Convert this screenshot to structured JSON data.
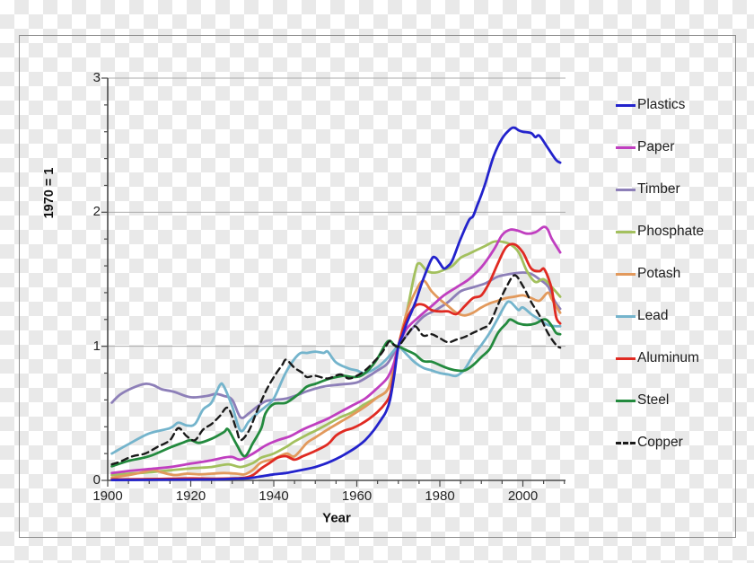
{
  "chart_data": {
    "type": "line",
    "title": "",
    "xlabel": "Year",
    "ylabel": "1970 = 1",
    "xlim": [
      1900,
      2010
    ],
    "ylim": [
      0,
      3
    ],
    "grid": "horizontal-only",
    "gridlines_y": [
      1,
      2,
      3
    ],
    "x_major_ticks": [
      1900,
      1920,
      1940,
      1960,
      1980,
      2000
    ],
    "x_minor_step": 5,
    "y_major_ticks": [
      0,
      1,
      2,
      3
    ],
    "y_minor_step": 0.2,
    "legend_position": "right-outside",
    "draw_order": [
      2,
      3,
      4,
      1,
      5,
      7,
      6,
      0,
      8
    ],
    "series": [
      {
        "name": "Plastics",
        "color": "#2323cc",
        "dash": null,
        "x": [
          1901,
          1910,
          1920,
          1927,
          1930,
          1933,
          1935,
          1937,
          1940,
          1943,
          1945,
          1948,
          1950,
          1952,
          1954,
          1956,
          1958,
          1960,
          1962,
          1964,
          1966,
          1967,
          1968,
          1969,
          1970,
          1971,
          1972,
          1974,
          1976,
          1978,
          1979,
          1980,
          1981,
          1982,
          1983,
          1985,
          1987,
          1988,
          1989,
          1990,
          1991,
          1993,
          1995,
          1997,
          1998,
          1999,
          2000,
          2002,
          2003,
          2004,
          2006,
          2008,
          2009
        ],
        "y": [
          0.003,
          0.004,
          0.006,
          0.008,
          0.012,
          0.015,
          0.02,
          0.03,
          0.045,
          0.055,
          0.067,
          0.085,
          0.1,
          0.12,
          0.145,
          0.175,
          0.21,
          0.25,
          0.3,
          0.37,
          0.46,
          0.51,
          0.6,
          0.78,
          1.0,
          1.08,
          1.17,
          1.32,
          1.5,
          1.65,
          1.66,
          1.62,
          1.58,
          1.6,
          1.64,
          1.8,
          1.94,
          1.97,
          2.05,
          2.13,
          2.22,
          2.42,
          2.55,
          2.62,
          2.63,
          2.61,
          2.6,
          2.59,
          2.56,
          2.57,
          2.48,
          2.39,
          2.37
        ]
      },
      {
        "name": "Paper",
        "color": "#c03fc0",
        "dash": null,
        "x": [
          1901,
          1905,
          1910,
          1915,
          1920,
          1925,
          1928,
          1930,
          1932,
          1935,
          1938,
          1941,
          1944,
          1947,
          1950,
          1953,
          1956,
          1959,
          1962,
          1965,
          1967,
          1968,
          1969,
          1970,
          1972,
          1975,
          1978,
          1981,
          1984,
          1987,
          1990,
          1993,
          1995,
          1997,
          1999,
          2001,
          2003,
          2005,
          2006,
          2007,
          2009
        ],
        "y": [
          0.055,
          0.07,
          0.085,
          0.1,
          0.125,
          0.15,
          0.17,
          0.175,
          0.155,
          0.2,
          0.26,
          0.3,
          0.33,
          0.38,
          0.42,
          0.46,
          0.51,
          0.56,
          0.61,
          0.69,
          0.75,
          0.8,
          0.88,
          1.0,
          1.13,
          1.22,
          1.3,
          1.38,
          1.44,
          1.5,
          1.59,
          1.72,
          1.83,
          1.87,
          1.86,
          1.84,
          1.85,
          1.89,
          1.87,
          1.8,
          1.7
        ]
      },
      {
        "name": "Timber",
        "color": "#8d7fb8",
        "dash": null,
        "x": [
          1901,
          1903,
          1906,
          1909,
          1911,
          1913,
          1916,
          1920,
          1924,
          1926,
          1928,
          1930,
          1932,
          1934,
          1936,
          1938,
          1940,
          1943,
          1946,
          1948,
          1952,
          1956,
          1960,
          1963,
          1965,
          1967,
          1968,
          1970,
          1973,
          1976,
          1979,
          1982,
          1985,
          1988,
          1991,
          1994,
          1997,
          2000,
          2002,
          2004,
          2006,
          2007,
          2008,
          2009
        ],
        "y": [
          0.58,
          0.64,
          0.69,
          0.72,
          0.71,
          0.68,
          0.66,
          0.62,
          0.63,
          0.645,
          0.63,
          0.6,
          0.47,
          0.5,
          0.55,
          0.59,
          0.6,
          0.61,
          0.64,
          0.665,
          0.7,
          0.715,
          0.73,
          0.78,
          0.82,
          0.86,
          0.9,
          1.0,
          1.12,
          1.22,
          1.27,
          1.33,
          1.41,
          1.44,
          1.47,
          1.52,
          1.54,
          1.55,
          1.54,
          1.5,
          1.45,
          1.38,
          1.32,
          1.28
        ]
      },
      {
        "name": "Phosphate",
        "color": "#a3c05e",
        "dash": null,
        "x": [
          1901,
          1905,
          1910,
          1915,
          1920,
          1925,
          1929,
          1932,
          1935,
          1937,
          1940,
          1943,
          1945,
          1948,
          1950,
          1953,
          1956,
          1959,
          1962,
          1965,
          1967,
          1968,
          1969,
          1970,
          1972,
          1974,
          1975,
          1977,
          1979,
          1981,
          1983,
          1985,
          1987,
          1989,
          1991,
          1993,
          1995,
          1997,
          1999,
          2001,
          2003,
          2005,
          2007,
          2009
        ],
        "y": [
          0.04,
          0.05,
          0.06,
          0.075,
          0.09,
          0.1,
          0.12,
          0.1,
          0.13,
          0.17,
          0.2,
          0.25,
          0.29,
          0.34,
          0.37,
          0.42,
          0.47,
          0.51,
          0.57,
          0.62,
          0.66,
          0.72,
          0.83,
          1.0,
          1.25,
          1.55,
          1.62,
          1.56,
          1.55,
          1.57,
          1.6,
          1.66,
          1.69,
          1.72,
          1.75,
          1.78,
          1.78,
          1.76,
          1.7,
          1.56,
          1.48,
          1.5,
          1.44,
          1.37
        ]
      },
      {
        "name": "Potash",
        "color": "#e2995c",
        "dash": null,
        "x": [
          1901,
          1903,
          1906,
          1909,
          1911,
          1913,
          1916,
          1919,
          1922,
          1925,
          1928,
          1931,
          1933,
          1935,
          1937,
          1940,
          1943,
          1945,
          1948,
          1950,
          1953,
          1956,
          1959,
          1962,
          1965,
          1967,
          1968,
          1969,
          1970,
          1972,
          1974,
          1976,
          1978,
          1980,
          1982,
          1984,
          1986,
          1988,
          1990,
          1992,
          1994,
          1996,
          1998,
          2000,
          2002,
          2004,
          2006,
          2007,
          2009
        ],
        "y": [
          0.02,
          0.03,
          0.045,
          0.065,
          0.08,
          0.06,
          0.04,
          0.05,
          0.045,
          0.05,
          0.055,
          0.05,
          0.045,
          0.08,
          0.134,
          0.16,
          0.2,
          0.18,
          0.28,
          0.32,
          0.38,
          0.435,
          0.49,
          0.55,
          0.62,
          0.66,
          0.72,
          0.85,
          1.0,
          1.25,
          1.4,
          1.49,
          1.41,
          1.35,
          1.3,
          1.25,
          1.23,
          1.25,
          1.29,
          1.32,
          1.34,
          1.36,
          1.37,
          1.38,
          1.36,
          1.34,
          1.4,
          1.35,
          1.25
        ]
      },
      {
        "name": "Lead",
        "color": "#74b4cc",
        "dash": null,
        "x": [
          1901,
          1905,
          1910,
          1915,
          1917,
          1919,
          1921,
          1923,
          1925,
          1927,
          1928,
          1930,
          1932,
          1934,
          1936,
          1938,
          1940,
          1943,
          1946,
          1948,
          1950,
          1952,
          1953,
          1955,
          1958,
          1960,
          1962,
          1965,
          1967,
          1969,
          1970,
          1972,
          1974,
          1976,
          1978,
          1980,
          1982,
          1984,
          1986,
          1988,
          1990,
          1992,
          1994,
          1996,
          1997,
          1998,
          1999,
          2000,
          2002,
          2004,
          2006,
          2008,
          2009
        ],
        "y": [
          0.2,
          0.27,
          0.35,
          0.39,
          0.43,
          0.41,
          0.42,
          0.53,
          0.58,
          0.71,
          0.7,
          0.55,
          0.37,
          0.44,
          0.5,
          0.55,
          0.61,
          0.81,
          0.94,
          0.95,
          0.96,
          0.95,
          0.96,
          0.88,
          0.835,
          0.82,
          0.8,
          0.845,
          0.9,
          0.97,
          1.0,
          0.94,
          0.88,
          0.84,
          0.82,
          0.8,
          0.79,
          0.78,
          0.83,
          0.93,
          1.01,
          1.1,
          1.21,
          1.32,
          1.33,
          1.3,
          1.27,
          1.29,
          1.24,
          1.2,
          1.16,
          1.15,
          1.15
        ]
      },
      {
        "name": "Aluminum",
        "color": "#e02a22",
        "dash": null,
        "x": [
          1901,
          1905,
          1910,
          1915,
          1920,
          1925,
          1930,
          1933,
          1935,
          1937,
          1939,
          1941,
          1943,
          1945,
          1947,
          1950,
          1953,
          1955,
          1957,
          1959,
          1961,
          1963,
          1965,
          1967,
          1968,
          1969,
          1970,
          1972,
          1974,
          1976,
          1978,
          1980,
          1982,
          1984,
          1986,
          1988,
          1990,
          1992,
          1994,
          1996,
          1998,
          2000,
          2002,
          2004,
          2005,
          2006,
          2007,
          2008,
          2009
        ],
        "y": [
          0.007,
          0.008,
          0.01,
          0.012,
          0.015,
          0.013,
          0.015,
          0.02,
          0.04,
          0.09,
          0.13,
          0.17,
          0.18,
          0.155,
          0.18,
          0.22,
          0.27,
          0.335,
          0.37,
          0.39,
          0.42,
          0.46,
          0.51,
          0.58,
          0.64,
          0.8,
          1.0,
          1.2,
          1.3,
          1.31,
          1.27,
          1.26,
          1.26,
          1.24,
          1.3,
          1.36,
          1.38,
          1.48,
          1.62,
          1.74,
          1.76,
          1.7,
          1.58,
          1.56,
          1.58,
          1.52,
          1.42,
          1.22,
          1.17
        ]
      },
      {
        "name": "Steel",
        "color": "#238a3e",
        "dash": null,
        "x": [
          1901,
          1905,
          1910,
          1915,
          1918,
          1920,
          1922,
          1925,
          1928,
          1929,
          1931,
          1933,
          1935,
          1937,
          1938,
          1940,
          1943,
          1946,
          1948,
          1950,
          1953,
          1955,
          1957,
          1959,
          1961,
          1963,
          1965,
          1967,
          1968,
          1969,
          1970,
          1972,
          1974,
          1976,
          1978,
          1980,
          1982,
          1984,
          1986,
          1988,
          1990,
          1992,
          1994,
          1996,
          1997,
          1999,
          2001,
          2003,
          2005,
          2006,
          2007,
          2008,
          2009
        ],
        "y": [
          0.105,
          0.145,
          0.18,
          0.245,
          0.28,
          0.3,
          0.28,
          0.31,
          0.36,
          0.38,
          0.27,
          0.18,
          0.28,
          0.39,
          0.5,
          0.57,
          0.58,
          0.645,
          0.7,
          0.72,
          0.755,
          0.77,
          0.78,
          0.77,
          0.78,
          0.83,
          0.91,
          1.02,
          1.04,
          1.01,
          1.0,
          0.97,
          0.94,
          0.89,
          0.885,
          0.86,
          0.835,
          0.82,
          0.82,
          0.86,
          0.92,
          0.98,
          1.1,
          1.17,
          1.2,
          1.17,
          1.16,
          1.17,
          1.2,
          1.19,
          1.15,
          1.1,
          1.09
        ]
      },
      {
        "name": "Copper",
        "color": "#1a1a1a",
        "dash": "7 5",
        "x": [
          1901,
          1903,
          1906,
          1909,
          1912,
          1915,
          1917,
          1919,
          1921,
          1923,
          1925,
          1927,
          1929,
          1931,
          1932,
          1934,
          1936,
          1938,
          1940,
          1942,
          1943,
          1945,
          1947,
          1948,
          1950,
          1953,
          1956,
          1958,
          1960,
          1962,
          1964,
          1966,
          1967,
          1968,
          1969,
          1970,
          1972,
          1974,
          1976,
          1978,
          1980,
          1982,
          1984,
          1986,
          1988,
          1990,
          1992,
          1994,
          1996,
          1998,
          2000,
          2002,
          2004,
          2006,
          2008,
          2009
        ],
        "y": [
          0.12,
          0.14,
          0.18,
          0.2,
          0.25,
          0.3,
          0.39,
          0.33,
          0.3,
          0.38,
          0.42,
          0.48,
          0.54,
          0.38,
          0.3,
          0.37,
          0.52,
          0.66,
          0.77,
          0.86,
          0.9,
          0.84,
          0.8,
          0.77,
          0.78,
          0.76,
          0.79,
          0.76,
          0.78,
          0.82,
          0.88,
          0.95,
          1.0,
          1.04,
          1.01,
          1.0,
          1.08,
          1.15,
          1.08,
          1.09,
          1.06,
          1.03,
          1.05,
          1.07,
          1.1,
          1.13,
          1.17,
          1.31,
          1.44,
          1.53,
          1.45,
          1.33,
          1.23,
          1.1,
          1.01,
          0.99
        ]
      }
    ]
  }
}
